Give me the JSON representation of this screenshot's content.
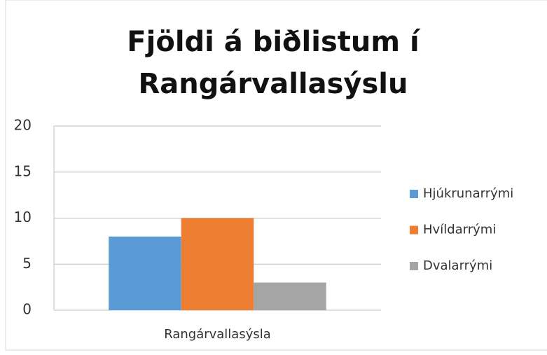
{
  "chart_data": {
    "type": "bar",
    "title": "Fjöldi á biðlistum í Rangárvallasýslu",
    "categories": [
      "Rangárvallasýsla"
    ],
    "series": [
      {
        "name": "Hjúkrunarrými",
        "color": "#5b9bd5",
        "values": [
          8
        ]
      },
      {
        "name": "Hvíldarrými",
        "color": "#ed7d31",
        "values": [
          10
        ]
      },
      {
        "name": "Dvalarrými",
        "color": "#a5a5a5",
        "values": [
          3
        ]
      }
    ],
    "ylim": [
      0,
      20
    ],
    "yticks": [
      0,
      5,
      10,
      15,
      20
    ],
    "grid": true,
    "legend": "right"
  }
}
